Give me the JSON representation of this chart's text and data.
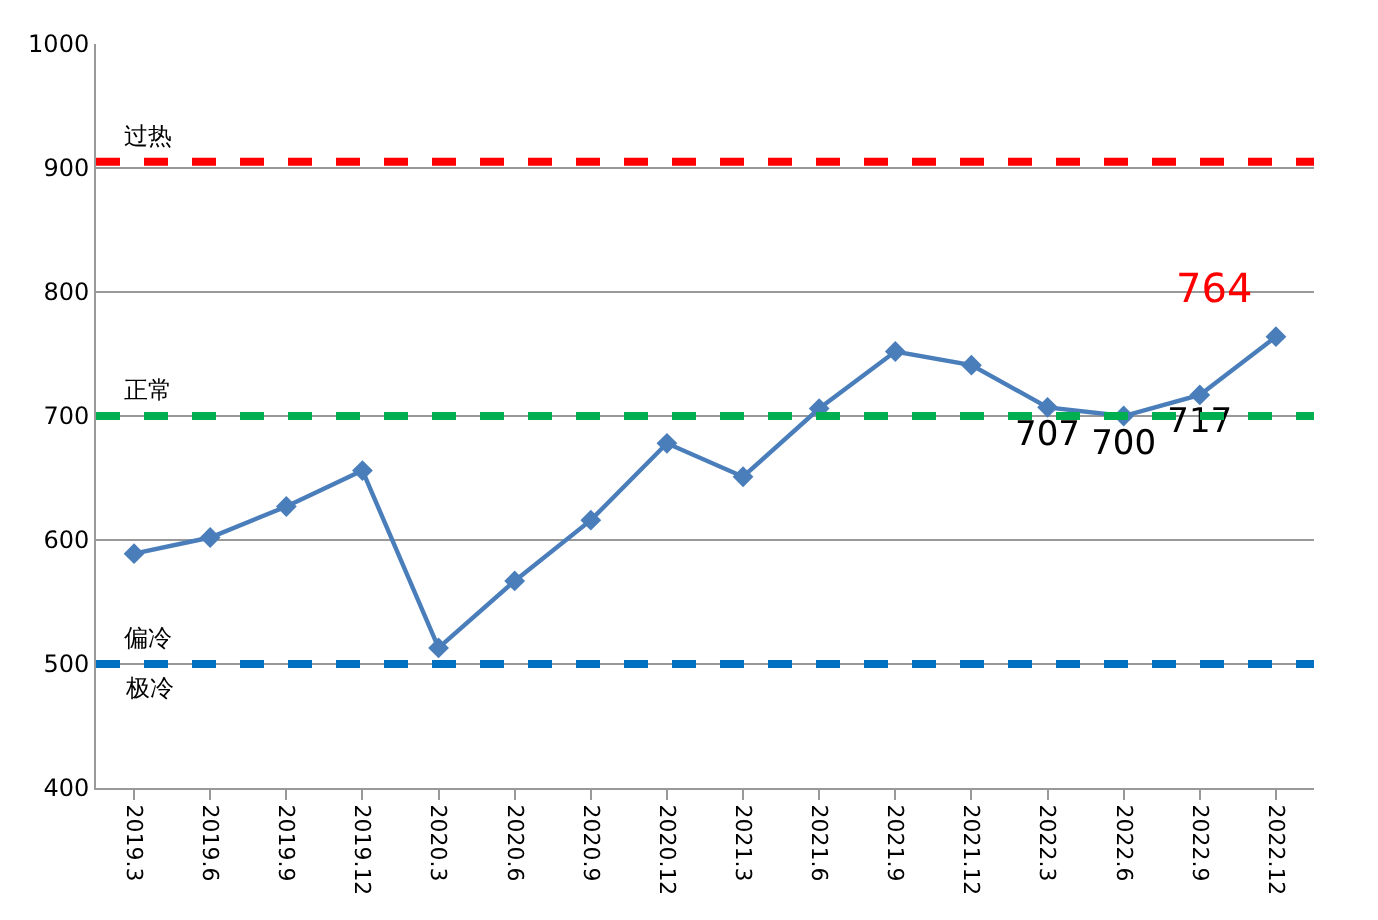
{
  "chart_data": {
    "type": "line",
    "categories": [
      "2019.3",
      "2019.6",
      "2019.9",
      "2019.12",
      "2020.3",
      "2020.6",
      "2020.9",
      "2020.12",
      "2021.3",
      "2021.6",
      "2021.9",
      "2021.12",
      "2022.3",
      "2022.6",
      "2022.9",
      "2022.12"
    ],
    "series": [
      {
        "color": "#4a7ebb",
        "values": [
          589,
          602,
          627,
          656,
          513,
          567,
          616,
          678,
          651,
          706,
          752,
          741,
          707,
          700,
          717,
          764
        ],
        "value_labels": [
          null,
          null,
          null,
          null,
          null,
          null,
          null,
          null,
          null,
          null,
          null,
          null,
          "707",
          "700",
          "717",
          null
        ]
      }
    ],
    "ylim": [
      400,
      1000
    ],
    "yticks": [
      400,
      500,
      600,
      700,
      800,
      900,
      1000
    ],
    "grid": "y",
    "legend": false,
    "marker": "diamond",
    "line_style": "solid",
    "ref_lines": [
      {
        "axis": "y",
        "value": 905,
        "label": "过热",
        "color": "#ff0000",
        "line_style": "dashed"
      },
      {
        "axis": "y",
        "value": 700,
        "label": "正常",
        "color": "#00b050",
        "line_style": "dashed"
      },
      {
        "axis": "y",
        "value": 500,
        "label": "偏冷",
        "color": "#0070c0",
        "line_style": "dashed"
      }
    ],
    "annotations": [
      {
        "text": "764",
        "x": "2022.12",
        "y": 764
      },
      "极冷"
    ]
  }
}
